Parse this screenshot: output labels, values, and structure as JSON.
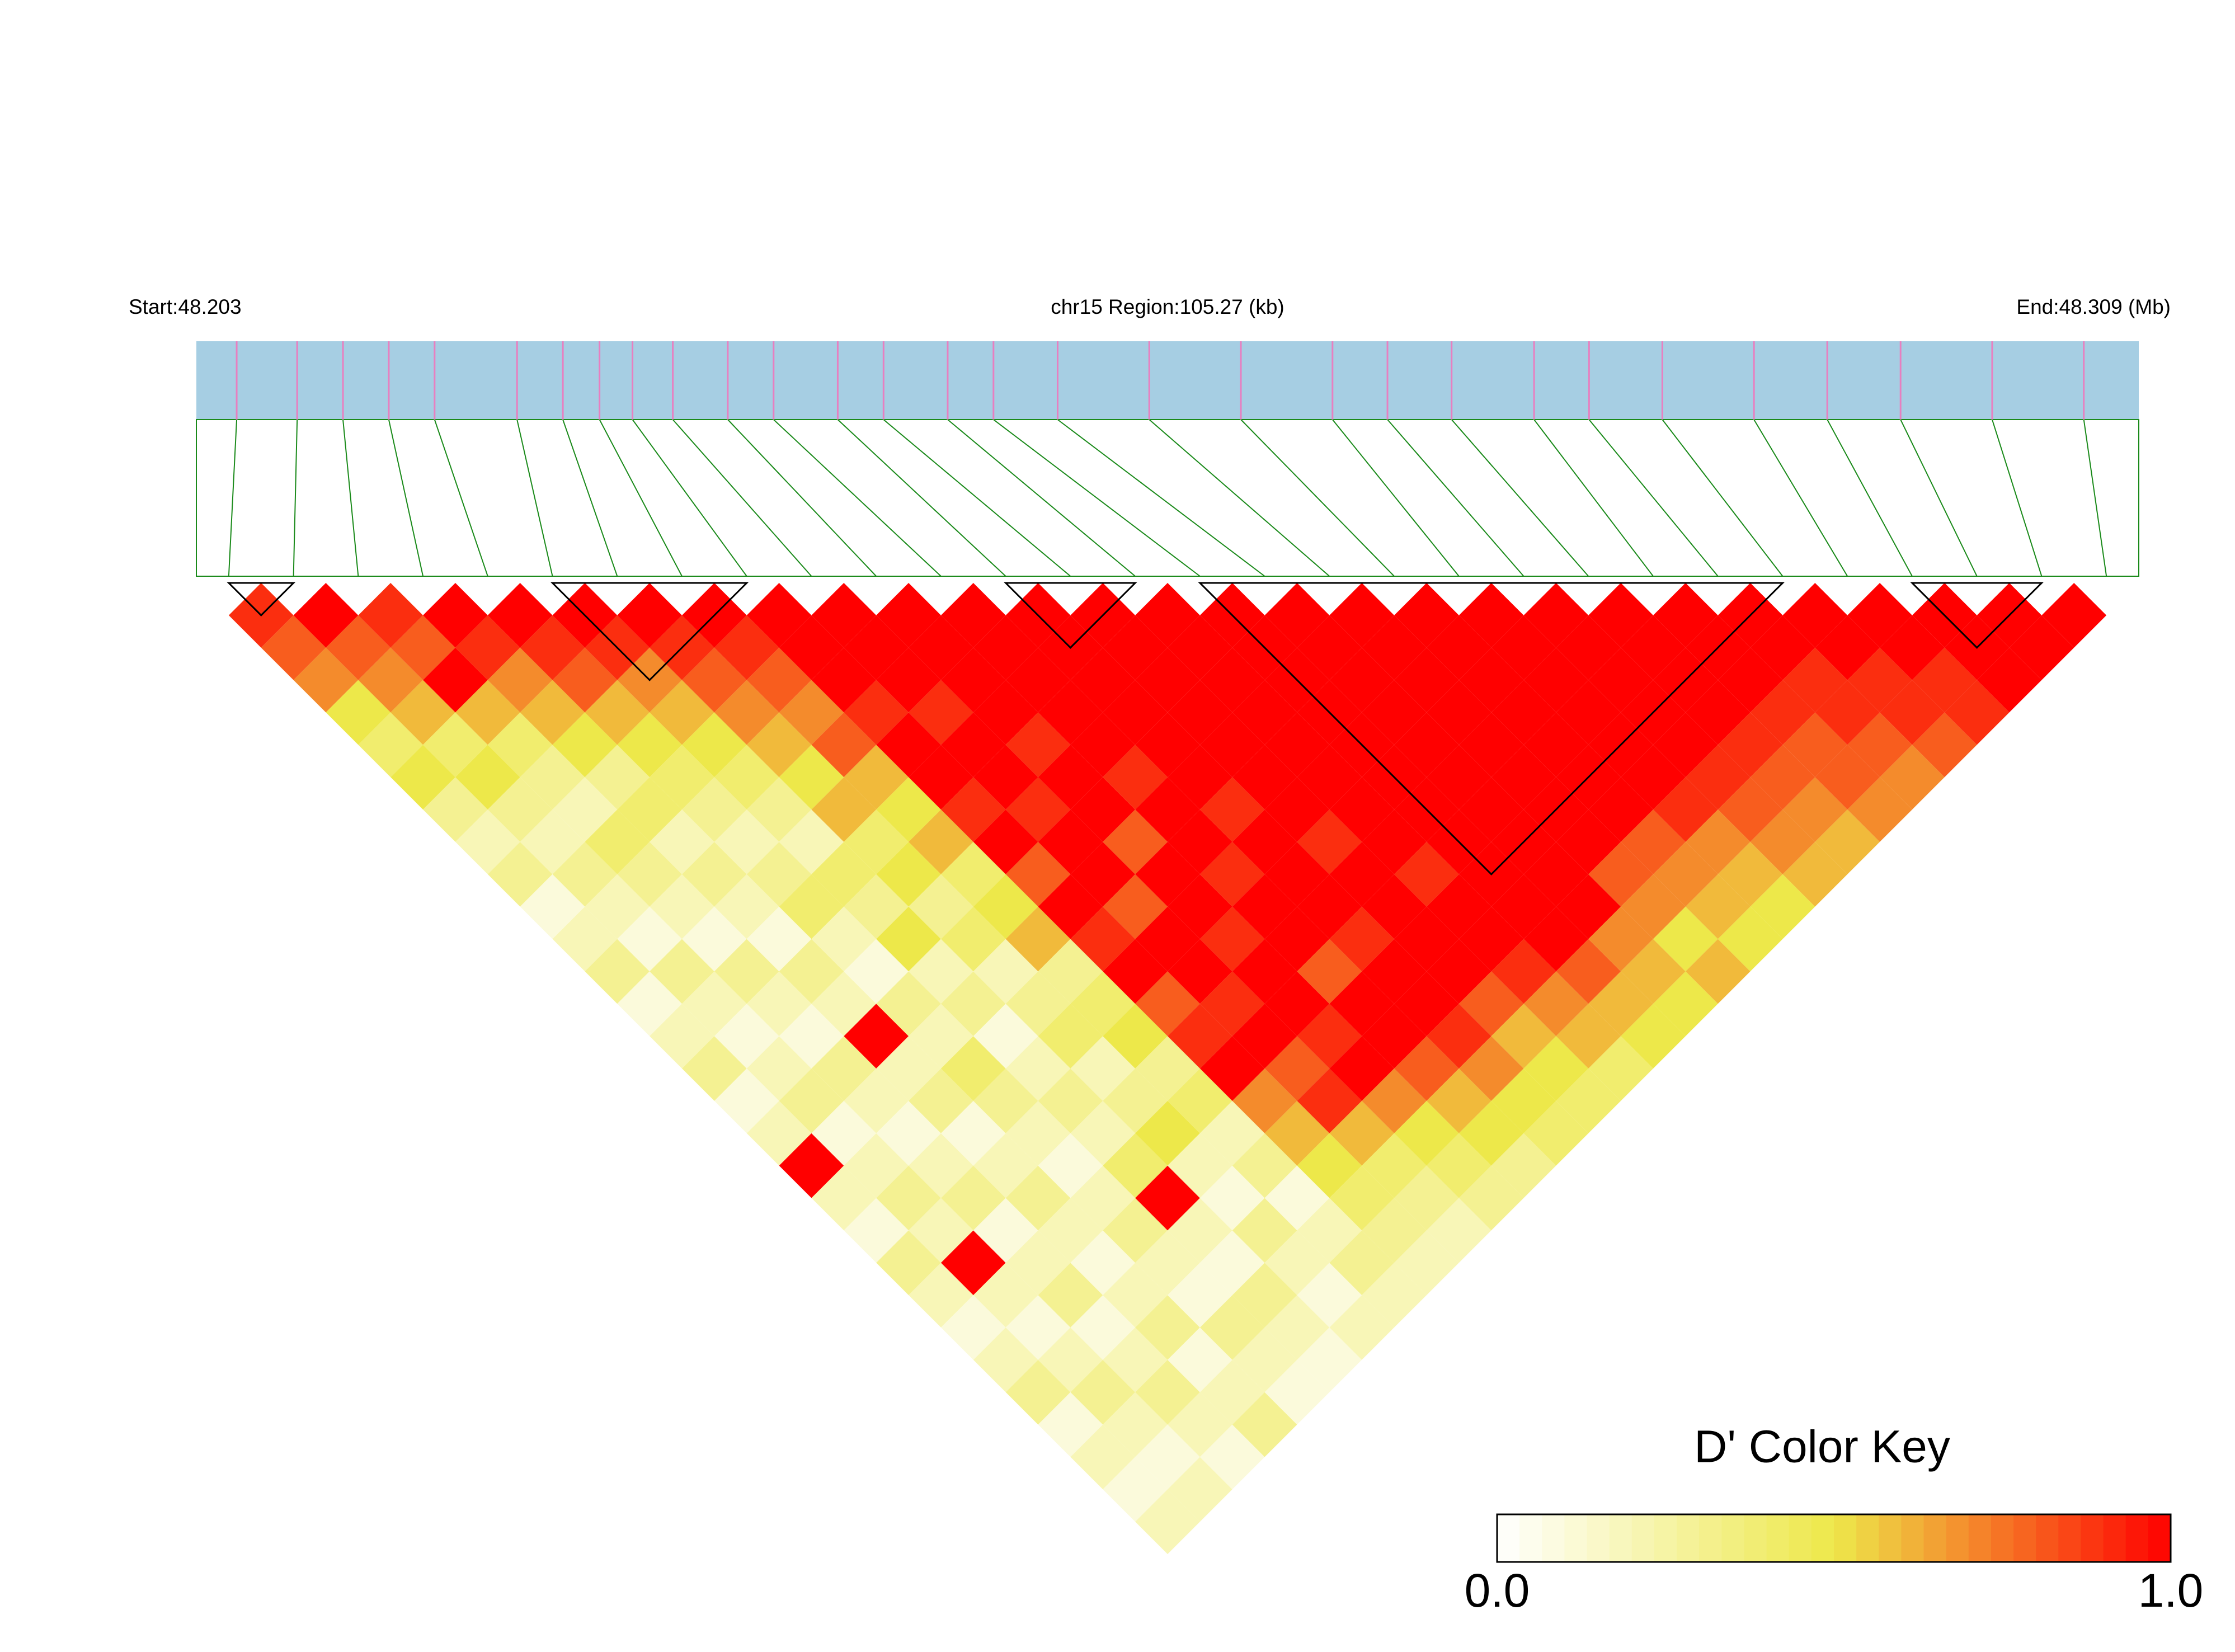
{
  "chart_data": {
    "type": "heatmap",
    "start_label": "Start:48.203",
    "region_label": "chr15 Region:105.27 (kb)",
    "end_label": "End:48.309 (Mb)",
    "xlim": [
      48.203,
      48.309
    ],
    "snp_positions": [
      48.2052,
      48.2085,
      48.211,
      48.2135,
      48.216,
      48.2205,
      48.223,
      48.225,
      48.2268,
      48.229,
      48.232,
      48.2345,
      48.238,
      48.2405,
      48.244,
      48.2465,
      48.25,
      48.255,
      48.26,
      48.265,
      48.268,
      48.2715,
      48.276,
      48.279,
      48.283,
      48.288,
      48.292,
      48.296,
      48.301,
      48.306
    ],
    "bar_color": "#a6cee3",
    "snp_color": "#e87fc0",
    "link_color": "#1a8a1a",
    "d_prime": [
      [
        0.9,
        0.8,
        0.7,
        0.5,
        0.4,
        0.5,
        0.3,
        0.2,
        0.3,
        0.1,
        0.2,
        0.3,
        0.1,
        0.2,
        0.3,
        0.1,
        0.2,
        1,
        0.2,
        0.1,
        0.3,
        0.2,
        0.1,
        0.2,
        0.3,
        0.1,
        0.2,
        0.1,
        0.2
      ],
      [
        1,
        0.8,
        0.7,
        0.6,
        0.4,
        0.5,
        0.3,
        0.2,
        0.3,
        0.2,
        0.1,
        0.3,
        0.2,
        0.1,
        0.2,
        0.3,
        0.1,
        0.2,
        0.3,
        0.2,
        1,
        0.2,
        0.1,
        0.2,
        0.3,
        0.2,
        0.1,
        0.2
      ],
      [
        0.9,
        0.8,
        1,
        0.6,
        0.4,
        0.3,
        0.2,
        0.4,
        0.3,
        0.2,
        0.1,
        0.3,
        0.2,
        0.1,
        0.3,
        0.2,
        0.1,
        0.2,
        0.3,
        0.1,
        0.2,
        0.3,
        0.1,
        0.2,
        0.3,
        0.2,
        0.1
      ],
      [
        1,
        0.9,
        0.7,
        0.6,
        0.5,
        0.3,
        0.4,
        0.2,
        0.3,
        0.2,
        0.1,
        0.3,
        0.2,
        1,
        0.2,
        0.3,
        0.1,
        0.2,
        0.3,
        0.2,
        0.1,
        0.2,
        0.3,
        0.1,
        0.2,
        0.3
      ],
      [
        1,
        0.9,
        0.8,
        0.6,
        0.5,
        0.4,
        0.3,
        0.2,
        0.3,
        0.4,
        0.2,
        0.1,
        0.3,
        0.2,
        0.4,
        0.3,
        0.2,
        0.1,
        0.2,
        0.3,
        0.2,
        0.1,
        0.3,
        0.2,
        0.1
      ],
      [
        1,
        0.9,
        0.7,
        0.6,
        0.5,
        0.4,
        0.3,
        0.2,
        0.4,
        0.3,
        0.5,
        0.2,
        0.3,
        0.1,
        0.2,
        0.3,
        0.2,
        0.4,
        1,
        0.2,
        0.1,
        0.3,
        0.2,
        0.1
      ],
      [
        1,
        0.9,
        0.8,
        0.7,
        0.6,
        0.5,
        0.6,
        0.4,
        0.5,
        0.3,
        0.4,
        0.2,
        0.3,
        0.4,
        0.2,
        0.3,
        0.5,
        0.2,
        0.1,
        0.3,
        0.2,
        0.1,
        0.2
      ],
      [
        1,
        0.9,
        0.8,
        0.7,
        0.8,
        0.6,
        0.5,
        0.6,
        0.4,
        0.5,
        0.6,
        0.3,
        0.4,
        0.5,
        0.3,
        0.4,
        0.2,
        0.3,
        0.1,
        0.2,
        0.3,
        0.2
      ],
      [
        1,
        1,
        1,
        0.9,
        1,
        1,
        0.9,
        1,
        0.8,
        1,
        0.9,
        1,
        0.8,
        0.9,
        1,
        0.7,
        0.6,
        0.5,
        0.4,
        0.3,
        0.2
      ],
      [
        1,
        1,
        1,
        0.9,
        1,
        1,
        0.9,
        1,
        1,
        0.8,
        1,
        1,
        0.9,
        1,
        0.8,
        0.9,
        0.6,
        0.4,
        0.3,
        0.2
      ],
      [
        1,
        1,
        1,
        1,
        0.9,
        1,
        1,
        0.8,
        1,
        1,
        0.9,
        1,
        1,
        0.9,
        1,
        0.7,
        0.5,
        0.4,
        0.3
      ],
      [
        1,
        1,
        1,
        1,
        1,
        0.9,
        1,
        1,
        0.9,
        1,
        1,
        0.8,
        1,
        1,
        0.8,
        0.6,
        0.5,
        0.3
      ],
      [
        1,
        1,
        1,
        1,
        1,
        1,
        0.9,
        1,
        1,
        1,
        0.9,
        1,
        1,
        0.9,
        0.7,
        0.5,
        0.4
      ],
      [
        1,
        1,
        1,
        1,
        1,
        1,
        1,
        0.9,
        1,
        1,
        1,
        1,
        0.8,
        0.6,
        0.5,
        0.4
      ],
      [
        1,
        1,
        1,
        1,
        1,
        1,
        1,
        1,
        0.9,
        1,
        1,
        0.9,
        0.7,
        0.6,
        0.4
      ],
      [
        1,
        1,
        1,
        1,
        1,
        1,
        1,
        1,
        1,
        1,
        1,
        0.8,
        0.6,
        0.5
      ],
      [
        1,
        1,
        1,
        1,
        1,
        1,
        1,
        1,
        1,
        1,
        0.7,
        0.6,
        0.5
      ],
      [
        1,
        1,
        1,
        1,
        1,
        1,
        1,
        1,
        0.8,
        0.7,
        0.5,
        0.6
      ],
      [
        1,
        1,
        1,
        1,
        1,
        1,
        1,
        0.8,
        0.7,
        0.6,
        0.5
      ],
      [
        1,
        1,
        1,
        1,
        1,
        1,
        0.9,
        0.7,
        0.6,
        0.5
      ],
      [
        1,
        1,
        1,
        1,
        1,
        0.9,
        0.8,
        0.7,
        0.6
      ],
      [
        1,
        1,
        1,
        1,
        0.9,
        0.8,
        0.7,
        0.6
      ],
      [
        1,
        1,
        1,
        0.9,
        0.8,
        0.8,
        0.7
      ],
      [
        1,
        1,
        0.9,
        0.9,
        0.8,
        0.7
      ],
      [
        1,
        1,
        0.9,
        0.9,
        0.8
      ],
      [
        1,
        1,
        0.9,
        0.9
      ],
      [
        1,
        1,
        1
      ],
      [
        1,
        1
      ],
      [
        1
      ]
    ],
    "blocks": [
      [
        0,
        1
      ],
      [
        5,
        8
      ],
      [
        12,
        14
      ],
      [
        15,
        24
      ],
      [
        26,
        28
      ]
    ],
    "color_key": {
      "title": "D' Color Key",
      "lim": [
        0,
        1
      ],
      "ticks": [
        {
          "value": 0,
          "label": "0.0"
        },
        {
          "value": 1,
          "label": "1.0"
        }
      ],
      "colors": [
        "#ffffff",
        "#ede84a",
        "#ff0000"
      ]
    }
  }
}
